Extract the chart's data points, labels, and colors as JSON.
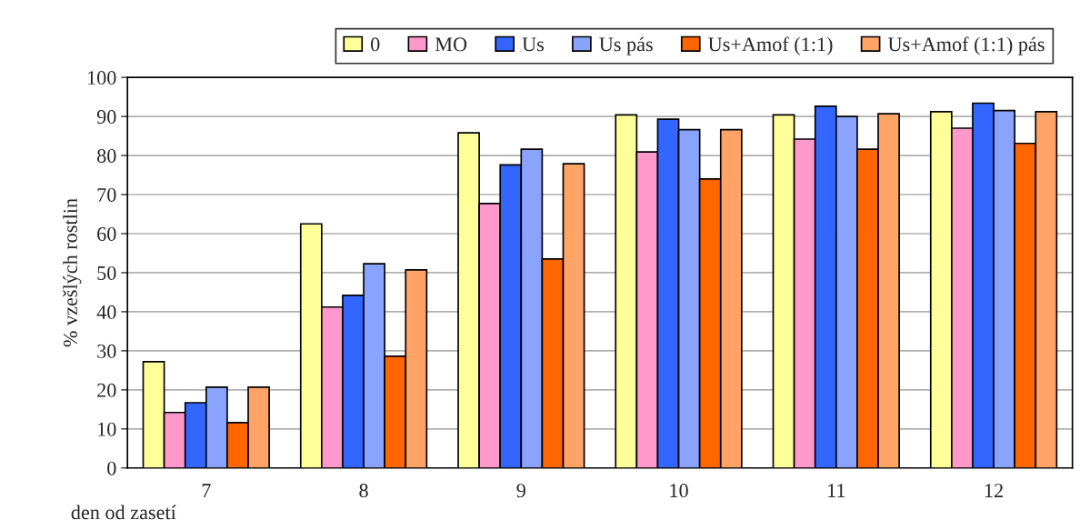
{
  "chart_data": {
    "type": "bar",
    "xlabel": "den od zasetí",
    "ylabel": "% vzešlých rostlin",
    "categories": [
      "7",
      "8",
      "9",
      "10",
      "11",
      "12"
    ],
    "series": [
      {
        "name": "0",
        "color": "#ffff99",
        "values": [
          27.2,
          62.5,
          85.8,
          90.4,
          90.4,
          91.2
        ]
      },
      {
        "name": "MO",
        "color": "#ff99cc",
        "values": [
          14.2,
          41.2,
          67.7,
          80.9,
          84.2,
          87.0
        ]
      },
      {
        "name": "Us",
        "color": "#3366ff",
        "values": [
          16.7,
          44.2,
          77.6,
          89.3,
          92.6,
          93.4
        ]
      },
      {
        "name": "Us pás",
        "color": "#8aa3ff",
        "values": [
          20.7,
          52.3,
          81.6,
          86.6,
          90.0,
          91.5
        ]
      },
      {
        "name": "Us+Amof (1:1)",
        "color": "#ff6600",
        "values": [
          11.6,
          28.6,
          53.5,
          74.0,
          81.6,
          83.1
        ]
      },
      {
        "name": "Us+Amof (1:1) pás",
        "color": "#ffa366",
        "values": [
          20.7,
          50.7,
          77.9,
          86.6,
          90.7,
          91.2
        ]
      }
    ],
    "ylim": [
      0,
      100
    ],
    "yticks": [
      0,
      10,
      20,
      30,
      40,
      50,
      60,
      70,
      80,
      90,
      100
    ],
    "grid": "y",
    "legend": "top"
  }
}
